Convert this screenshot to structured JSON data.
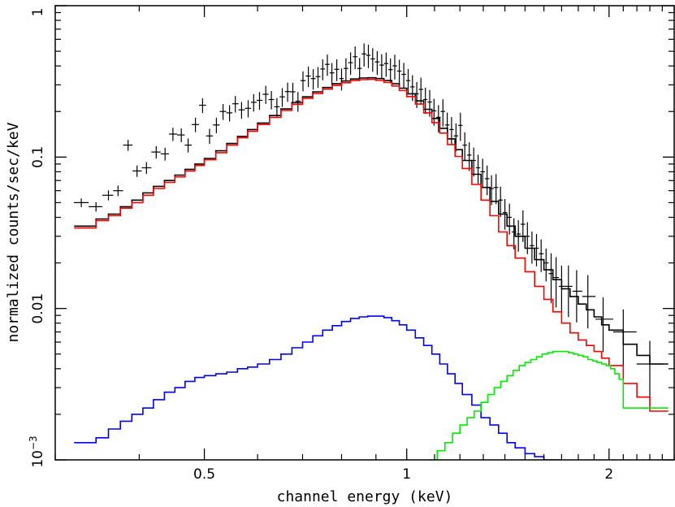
{
  "chart_data": {
    "type": "line",
    "title": "",
    "xlabel": "channel energy (keV)",
    "ylabel": "normalized counts/sec/keV",
    "x_scale": "log",
    "y_scale": "log",
    "xlim": [
      0.3,
      2.5
    ],
    "ylim": [
      0.001,
      1
    ],
    "x_ticks": [
      {
        "value": 0.5,
        "label": "0.5"
      },
      {
        "value": 1,
        "label": "1"
      },
      {
        "value": 2,
        "label": "2"
      }
    ],
    "y_ticks": [
      {
        "value": 0.001,
        "label": "10",
        "sup": "−3"
      },
      {
        "value": 0.01,
        "label": "0.01",
        "sup": ""
      },
      {
        "value": 0.1,
        "label": "0.1",
        "sup": ""
      },
      {
        "value": 1,
        "label": "1",
        "sup": ""
      }
    ],
    "grid": false,
    "legend": "none",
    "series": [
      {
        "color": "#000000",
        "style": "errorbars",
        "x": [
          0.328,
          0.345,
          0.36,
          0.372,
          0.385,
          0.397,
          0.41,
          0.424,
          0.437,
          0.449,
          0.462,
          0.473,
          0.485,
          0.497,
          0.509,
          0.521,
          0.533,
          0.545,
          0.556,
          0.568,
          0.581,
          0.592,
          0.604,
          0.617,
          0.629,
          0.641,
          0.653,
          0.665,
          0.677,
          0.689,
          0.701,
          0.714,
          0.726,
          0.738,
          0.75,
          0.762,
          0.774,
          0.787,
          0.8,
          0.812,
          0.825,
          0.838,
          0.851,
          0.864,
          0.877,
          0.89,
          0.904,
          0.918,
          0.932,
          0.946,
          0.96,
          0.975,
          0.99,
          1.005,
          1.02,
          1.035,
          1.05,
          1.066,
          1.082,
          1.098,
          1.115,
          1.132,
          1.149,
          1.166,
          1.184,
          1.202,
          1.22,
          1.239,
          1.258,
          1.277,
          1.297,
          1.317,
          1.337,
          1.358,
          1.379,
          1.4,
          1.422,
          1.444,
          1.466,
          1.489,
          1.512,
          1.536,
          1.56,
          1.585,
          1.612,
          1.64,
          1.668,
          1.7,
          1.74,
          1.79,
          1.86,
          1.96,
          2.1,
          2.3
        ],
        "y": [
          0.05,
          0.047,
          0.056,
          0.06,
          0.12,
          0.081,
          0.085,
          0.108,
          0.105,
          0.142,
          0.14,
          0.12,
          0.164,
          0.22,
          0.138,
          0.163,
          0.2,
          0.196,
          0.225,
          0.205,
          0.21,
          0.23,
          0.237,
          0.26,
          0.24,
          0.215,
          0.25,
          0.271,
          0.27,
          0.234,
          0.32,
          0.343,
          0.33,
          0.34,
          0.382,
          0.41,
          0.36,
          0.38,
          0.33,
          0.385,
          0.42,
          0.46,
          0.385,
          0.48,
          0.47,
          0.445,
          0.425,
          0.405,
          0.415,
          0.378,
          0.4,
          0.37,
          0.352,
          0.32,
          0.291,
          0.262,
          0.28,
          0.24,
          0.231,
          0.202,
          0.183,
          0.2,
          0.163,
          0.152,
          0.138,
          0.162,
          0.12,
          0.103,
          0.095,
          0.085,
          0.08,
          0.072,
          0.062,
          0.063,
          0.052,
          0.043,
          0.04,
          0.032,
          0.031,
          0.036,
          0.03,
          0.026,
          0.025,
          0.023,
          0.02,
          0.017,
          0.016,
          0.014,
          0.014,
          0.013,
          0.012,
          0.0085,
          0.007,
          0.0043
        ]
      },
      {
        "color": "#000000",
        "style": "step",
        "x": [
          0.32,
          0.345,
          0.36,
          0.375,
          0.39,
          0.405,
          0.42,
          0.436,
          0.452,
          0.468,
          0.484,
          0.5,
          0.52,
          0.54,
          0.56,
          0.58,
          0.6,
          0.625,
          0.65,
          0.675,
          0.7,
          0.725,
          0.75,
          0.775,
          0.8,
          0.825,
          0.85,
          0.875,
          0.9,
          0.925,
          0.95,
          0.975,
          1.0,
          1.03,
          1.06,
          1.09,
          1.12,
          1.15,
          1.18,
          1.21,
          1.25,
          1.29,
          1.33,
          1.37,
          1.41,
          1.45,
          1.5,
          1.55,
          1.6,
          1.65,
          1.7,
          1.75,
          1.8,
          1.85,
          1.9,
          1.95,
          2.0,
          2.1,
          2.2,
          2.3,
          2.45
        ],
        "y": [
          0.035,
          0.039,
          0.042,
          0.047,
          0.052,
          0.058,
          0.064,
          0.07,
          0.076,
          0.083,
          0.09,
          0.098,
          0.11,
          0.123,
          0.137,
          0.152,
          0.168,
          0.188,
          0.208,
          0.229,
          0.25,
          0.27,
          0.288,
          0.305,
          0.318,
          0.328,
          0.333,
          0.334,
          0.33,
          0.32,
          0.305,
          0.285,
          0.262,
          0.235,
          0.207,
          0.18,
          0.155,
          0.132,
          0.112,
          0.095,
          0.077,
          0.063,
          0.051,
          0.042,
          0.035,
          0.03,
          0.025,
          0.021,
          0.018,
          0.0155,
          0.0135,
          0.012,
          0.0107,
          0.0098,
          0.0088,
          0.0078,
          0.0072,
          0.0058,
          0.0049,
          0.0043,
          0.0043
        ]
      },
      {
        "color": "#ff0000",
        "style": "step",
        "x": [
          0.32,
          0.345,
          0.36,
          0.375,
          0.39,
          0.405,
          0.42,
          0.436,
          0.452,
          0.468,
          0.484,
          0.5,
          0.52,
          0.54,
          0.56,
          0.58,
          0.6,
          0.625,
          0.65,
          0.675,
          0.7,
          0.725,
          0.75,
          0.775,
          0.8,
          0.825,
          0.85,
          0.875,
          0.9,
          0.925,
          0.95,
          0.975,
          1.0,
          1.03,
          1.06,
          1.09,
          1.12,
          1.15,
          1.18,
          1.21,
          1.25,
          1.29,
          1.33,
          1.37,
          1.41,
          1.45,
          1.5,
          1.55,
          1.6,
          1.65,
          1.7,
          1.75,
          1.8,
          1.85,
          1.9,
          1.95,
          2.0,
          2.1,
          2.2,
          2.3,
          2.45
        ],
        "y": [
          0.034,
          0.038,
          0.041,
          0.046,
          0.05,
          0.056,
          0.062,
          0.068,
          0.074,
          0.081,
          0.088,
          0.096,
          0.107,
          0.12,
          0.134,
          0.148,
          0.164,
          0.183,
          0.203,
          0.223,
          0.244,
          0.263,
          0.281,
          0.297,
          0.31,
          0.32,
          0.325,
          0.326,
          0.321,
          0.311,
          0.295,
          0.275,
          0.251,
          0.224,
          0.196,
          0.169,
          0.144,
          0.121,
          0.101,
          0.084,
          0.066,
          0.052,
          0.041,
          0.032,
          0.026,
          0.0215,
          0.0175,
          0.014,
          0.0115,
          0.0095,
          0.008,
          0.0069,
          0.0062,
          0.0057,
          0.0052,
          0.0047,
          0.0042,
          0.0032,
          0.0026,
          0.0021,
          0.0019
        ]
      },
      {
        "color": "#0000ff",
        "style": "step",
        "x": [
          0.32,
          0.345,
          0.36,
          0.375,
          0.39,
          0.405,
          0.42,
          0.436,
          0.452,
          0.468,
          0.484,
          0.5,
          0.52,
          0.54,
          0.56,
          0.58,
          0.6,
          0.625,
          0.65,
          0.675,
          0.7,
          0.725,
          0.75,
          0.775,
          0.8,
          0.825,
          0.85,
          0.875,
          0.9,
          0.925,
          0.95,
          0.975,
          1.0,
          1.03,
          1.06,
          1.09,
          1.12,
          1.15,
          1.18,
          1.21,
          1.25,
          1.29,
          1.33,
          1.37,
          1.41,
          1.45,
          1.5,
          1.55,
          1.6,
          1.65,
          1.7
        ],
        "y": [
          0.0013,
          0.0014,
          0.0016,
          0.0018,
          0.002,
          0.0022,
          0.0025,
          0.0028,
          0.003,
          0.0033,
          0.0035,
          0.0036,
          0.0037,
          0.0038,
          0.004,
          0.0041,
          0.0043,
          0.0046,
          0.005,
          0.0055,
          0.006,
          0.0066,
          0.0072,
          0.0077,
          0.0082,
          0.0086,
          0.0088,
          0.0089,
          0.0089,
          0.0087,
          0.0083,
          0.0078,
          0.0072,
          0.0064,
          0.0057,
          0.005,
          0.0043,
          0.0037,
          0.0032,
          0.0027,
          0.0023,
          0.0019,
          0.0017,
          0.0015,
          0.0013,
          0.0012,
          0.0011,
          0.00105,
          0.001,
          0.001,
          0.001
        ]
      },
      {
        "color": "#00ee00",
        "style": "step",
        "x": [
          1.08,
          1.11,
          1.14,
          1.17,
          1.2,
          1.23,
          1.26,
          1.29,
          1.32,
          1.35,
          1.38,
          1.41,
          1.44,
          1.47,
          1.5,
          1.53,
          1.56,
          1.59,
          1.62,
          1.65,
          1.68,
          1.71,
          1.74,
          1.77,
          1.8,
          1.83,
          1.86,
          1.89,
          1.92,
          1.95,
          1.98,
          2.01,
          2.04,
          2.07,
          2.1,
          2.3,
          2.45
        ],
        "y": [
          0.001,
          0.00115,
          0.0013,
          0.0015,
          0.0017,
          0.0019,
          0.0021,
          0.0024,
          0.0027,
          0.003,
          0.0033,
          0.0036,
          0.0039,
          0.0042,
          0.0044,
          0.0046,
          0.0048,
          0.005,
          0.0051,
          0.0052,
          0.0052,
          0.0052,
          0.0051,
          0.005,
          0.0049,
          0.0048,
          0.0046,
          0.0045,
          0.0044,
          0.0043,
          0.0042,
          0.004,
          0.0037,
          0.0034,
          0.0022,
          0.0022,
          0.0022
        ]
      }
    ]
  }
}
